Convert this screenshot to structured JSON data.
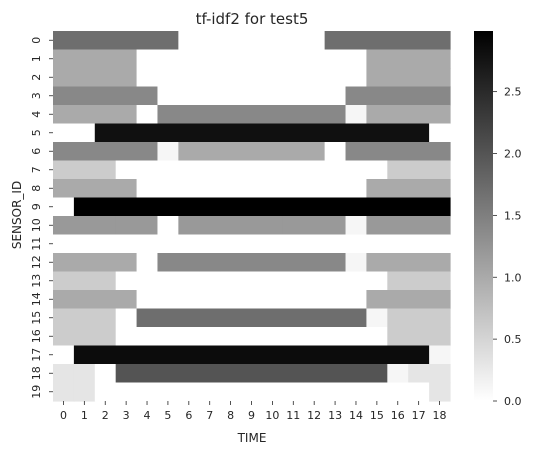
{
  "chart_data": {
    "type": "heatmap",
    "title": "tf-idf2 for test5",
    "xlabel": "TIME",
    "ylabel": "SENSOR_ID",
    "x_categories": [
      "0",
      "1",
      "2",
      "3",
      "4",
      "5",
      "6",
      "7",
      "8",
      "9",
      "10",
      "11",
      "12",
      "13",
      "14",
      "15",
      "16",
      "17",
      "18"
    ],
    "y_categories": [
      "0",
      "1",
      "2",
      "3",
      "4",
      "5",
      "6",
      "7",
      "8",
      "9",
      "10",
      "11",
      "12",
      "13",
      "14",
      "15",
      "16",
      "17",
      "18",
      "19"
    ],
    "colormap": {
      "low": "#ffffff",
      "high": "#000000",
      "vmin": 0.0,
      "vmax": 2.99
    },
    "colorbar_ticks": [
      "0.0",
      "0.5",
      "1.0",
      "1.5",
      "2.0",
      "2.5"
    ],
    "values": [
      [
        1.7,
        1.7,
        1.7,
        1.7,
        1.7,
        1.7,
        0,
        0,
        0,
        0,
        0,
        0,
        0,
        1.7,
        1.7,
        1.7,
        1.7,
        1.7,
        1.7
      ],
      [
        1.0,
        1.0,
        1.0,
        1.0,
        0,
        0,
        0,
        0,
        0,
        0,
        0,
        0,
        0,
        0,
        0,
        1.0,
        1.0,
        1.0,
        1.0
      ],
      [
        1.0,
        1.0,
        1.0,
        1.0,
        0,
        0,
        0,
        0,
        0,
        0,
        0,
        0,
        0,
        0,
        0,
        1.0,
        1.0,
        1.0,
        1.0
      ],
      [
        1.4,
        1.4,
        1.4,
        1.4,
        1.4,
        0,
        0,
        0,
        0,
        0,
        0,
        0,
        0,
        0,
        1.4,
        1.4,
        1.4,
        1.4,
        1.4
      ],
      [
        1.0,
        1.0,
        1.0,
        1.0,
        0,
        1.4,
        1.4,
        1.4,
        1.4,
        1.4,
        1.4,
        1.4,
        1.4,
        1.4,
        0.1,
        1.0,
        1.0,
        1.0,
        1.0
      ],
      [
        0,
        0,
        2.8,
        2.8,
        2.8,
        2.8,
        2.8,
        2.8,
        2.8,
        2.8,
        2.8,
        2.8,
        2.8,
        2.8,
        2.8,
        2.8,
        2.8,
        2.8,
        0
      ],
      [
        1.4,
        1.4,
        1.4,
        1.4,
        1.4,
        0.1,
        1.0,
        1.0,
        1.0,
        1.0,
        1.0,
        1.0,
        1.0,
        0,
        1.4,
        1.4,
        1.4,
        1.4,
        1.4
      ],
      [
        0.6,
        0.6,
        0.6,
        0,
        0,
        0,
        0,
        0,
        0,
        0,
        0,
        0,
        0,
        0,
        0,
        0,
        0.6,
        0.6,
        0.6
      ],
      [
        1.0,
        1.0,
        1.0,
        1.0,
        0,
        0,
        0,
        0,
        0,
        0,
        0,
        0,
        0,
        0,
        0,
        1.0,
        1.0,
        1.0,
        1.0
      ],
      [
        0,
        2.99,
        2.99,
        2.99,
        2.99,
        2.99,
        2.99,
        2.99,
        2.99,
        2.99,
        2.99,
        2.99,
        2.99,
        2.99,
        2.99,
        2.99,
        2.99,
        2.99,
        2.99
      ],
      [
        1.2,
        1.2,
        1.2,
        1.2,
        1.2,
        0,
        1.2,
        1.2,
        1.2,
        1.2,
        1.2,
        1.2,
        1.2,
        1.2,
        0.1,
        1.2,
        1.2,
        1.2,
        1.2
      ],
      [
        0,
        0,
        0,
        0,
        0,
        0,
        0,
        0,
        0,
        0,
        0,
        0,
        0,
        0,
        0,
        0,
        0,
        0,
        0
      ],
      [
        1.0,
        1.0,
        1.0,
        1.0,
        0,
        1.4,
        1.4,
        1.4,
        1.4,
        1.4,
        1.4,
        1.4,
        1.4,
        1.4,
        0.1,
        1.0,
        1.0,
        1.0,
        1.0
      ],
      [
        0.6,
        0.6,
        0.6,
        0,
        0,
        0,
        0,
        0,
        0,
        0,
        0,
        0,
        0,
        0,
        0,
        0,
        0.6,
        0.6,
        0.6
      ],
      [
        1.0,
        1.0,
        1.0,
        1.0,
        0,
        0,
        0,
        0,
        0,
        0,
        0,
        0,
        0,
        0,
        0,
        1.0,
        1.0,
        1.0,
        1.0
      ],
      [
        0.6,
        0.6,
        0.6,
        0,
        1.7,
        1.7,
        1.7,
        1.7,
        1.7,
        1.7,
        1.7,
        1.7,
        1.7,
        1.7,
        1.7,
        0.1,
        0.6,
        0.6,
        0.6
      ],
      [
        0.6,
        0.6,
        0.6,
        0,
        0,
        0,
        0,
        0,
        0,
        0,
        0,
        0,
        0,
        0,
        0,
        0,
        0.6,
        0.6,
        0.6
      ],
      [
        0,
        2.85,
        2.85,
        2.85,
        2.85,
        2.85,
        2.85,
        2.85,
        2.85,
        2.85,
        2.85,
        2.85,
        2.85,
        2.85,
        2.85,
        2.85,
        2.85,
        2.85,
        0.1
      ],
      [
        0.3,
        0.3,
        0,
        2.0,
        2.0,
        2.0,
        2.0,
        2.0,
        2.0,
        2.0,
        2.0,
        2.0,
        2.0,
        2.0,
        2.0,
        2.0,
        0.1,
        0.3,
        0.3
      ],
      [
        0.3,
        0.3,
        0,
        0,
        0,
        0,
        0,
        0,
        0,
        0,
        0,
        0,
        0,
        0,
        0,
        0,
        0,
        0,
        0.3
      ]
    ]
  }
}
